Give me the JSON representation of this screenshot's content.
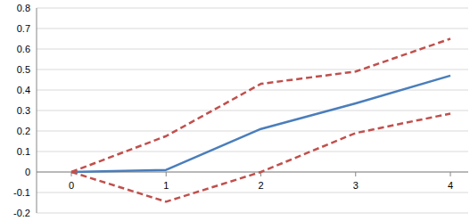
{
  "chart_data": {
    "type": "line",
    "categories": [
      "0",
      "1",
      "2",
      "3",
      "4"
    ],
    "series": [
      {
        "color": "#4a7ebb",
        "line_style": "solid",
        "values": [
          0,
          0.01,
          0.21,
          0.335,
          0.47
        ]
      },
      {
        "color": "#c0504d",
        "line_style": "dashed",
        "values": [
          0,
          0.175,
          0.43,
          0.49,
          0.65
        ]
      },
      {
        "color": "#c0504d",
        "line_style": "dashed",
        "values": [
          0,
          -0.145,
          0.0,
          0.19,
          0.285
        ]
      }
    ],
    "ylim": [
      -0.2,
      0.8
    ],
    "yticks": [
      -0.2,
      -0.1,
      0,
      0.1,
      0.2,
      0.3,
      0.4,
      0.5,
      0.6,
      0.7,
      0.8
    ],
    "grid": true
  }
}
